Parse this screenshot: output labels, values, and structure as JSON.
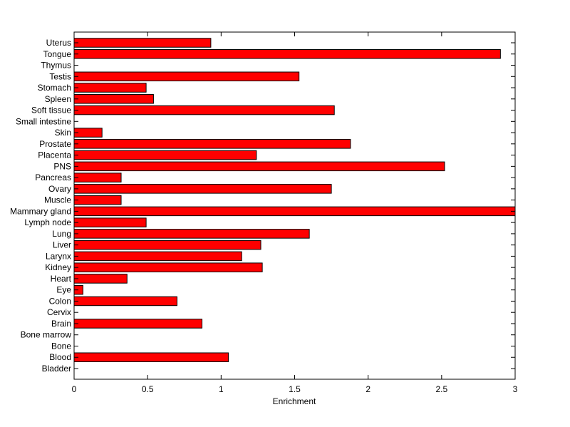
{
  "chart_data": {
    "type": "bar",
    "orientation": "horizontal",
    "categories": [
      "Bladder",
      "Blood",
      "Bone",
      "Bone marrow",
      "Brain",
      "Cervix",
      "Colon",
      "Eye",
      "Heart",
      "Kidney",
      "Larynx",
      "Liver",
      "Lung",
      "Lymph node",
      "Mammary gland",
      "Muscle",
      "Ovary",
      "Pancreas",
      "PNS",
      "Placenta",
      "Prostate",
      "Skin",
      "Small intestine",
      "Soft tissue",
      "Spleen",
      "Stomach",
      "Testis",
      "Thymus",
      "Tongue",
      "Uterus"
    ],
    "values": [
      0,
      1.05,
      0,
      0,
      0.87,
      0,
      0.7,
      0.06,
      0.36,
      1.28,
      1.14,
      1.27,
      1.6,
      0.49,
      3.0,
      0.32,
      1.75,
      0.32,
      2.52,
      1.24,
      1.88,
      0.19,
      0,
      1.77,
      0.54,
      0.49,
      1.53,
      0,
      2.9,
      0.93
    ],
    "title": "",
    "xlabel": "Enrichment",
    "ylabel": "",
    "xlim": [
      0,
      3
    ],
    "xticks": [
      0,
      0.5,
      1,
      1.5,
      2,
      2.5,
      3
    ],
    "xtick_labels": [
      "0",
      "0.5",
      "1",
      "1.5",
      "2",
      "2.5",
      "3"
    ],
    "grid": false,
    "colors": {
      "bar_fill": "#ff0000",
      "bar_stroke": "#000000",
      "axis": "#000000",
      "background": "#ffffff"
    }
  }
}
